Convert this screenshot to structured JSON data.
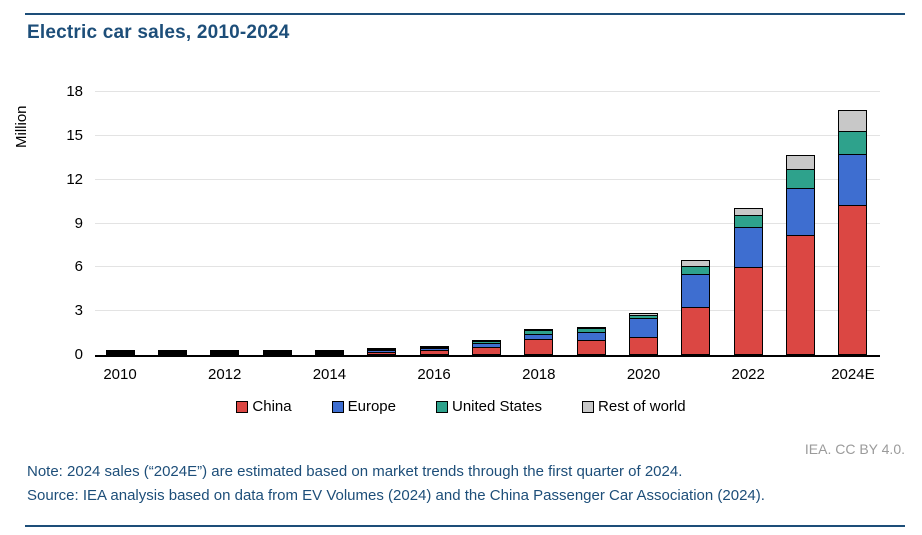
{
  "header": {
    "title": "Electric car sales, 2010-2024"
  },
  "chart_data": {
    "type": "bar",
    "stacked": true,
    "title": "Electric car sales, 2010-2024",
    "xlabel": "",
    "ylabel": "Million",
    "ylim": [
      0,
      18
    ],
    "yticks": [
      0,
      3,
      6,
      9,
      12,
      15,
      18
    ],
    "grid": true,
    "legend_position": "bottom",
    "categories": [
      "2010",
      "2011",
      "2012",
      "2013",
      "2014",
      "2015",
      "2016",
      "2017",
      "2018",
      "2019",
      "2020",
      "2021",
      "2022",
      "2023",
      "2024E"
    ],
    "x_tick_labels_shown": [
      "2010",
      "2012",
      "2014",
      "2016",
      "2018",
      "2020",
      "2022",
      "2024E"
    ],
    "series": [
      {
        "name": "China",
        "color": "#db4743",
        "values": [
          0.001,
          0.005,
          0.01,
          0.02,
          0.07,
          0.21,
          0.34,
          0.58,
          1.1,
          1.06,
          1.2,
          3.3,
          6.0,
          8.2,
          10.3
        ]
      },
      {
        "name": "Europe",
        "color": "#3e6ed0",
        "values": [
          0.002,
          0.01,
          0.03,
          0.07,
          0.1,
          0.19,
          0.22,
          0.31,
          0.39,
          0.59,
          1.4,
          2.3,
          2.8,
          3.3,
          3.5
        ]
      },
      {
        "name": "United States",
        "color": "#2ea28c",
        "values": [
          0.001,
          0.02,
          0.05,
          0.1,
          0.12,
          0.12,
          0.16,
          0.2,
          0.36,
          0.33,
          0.3,
          0.65,
          0.9,
          1.4,
          1.7
        ]
      },
      {
        "name": "Rest of world",
        "color": "#c8c8c8",
        "values": [
          0.003,
          0.01,
          0.02,
          0.02,
          0.03,
          0.03,
          0.04,
          0.09,
          0.15,
          0.15,
          0.15,
          0.45,
          0.55,
          1.0,
          1.5
        ]
      }
    ]
  },
  "footer": {
    "attribution": "IEA. CC BY 4.0.",
    "note": "Note: 2024 sales (“2024E”) are estimated based on market trends through the first quarter of 2024.",
    "source": "Source: IEA analysis based on data from EV Volumes (2024) and the China Passenger Car Association (2024)."
  },
  "style_colors": {
    "accent_navy": "#1d4e79",
    "gridline": "#e3e3e3",
    "axis": "#000000",
    "attribution_gray": "#9b9b9b"
  }
}
